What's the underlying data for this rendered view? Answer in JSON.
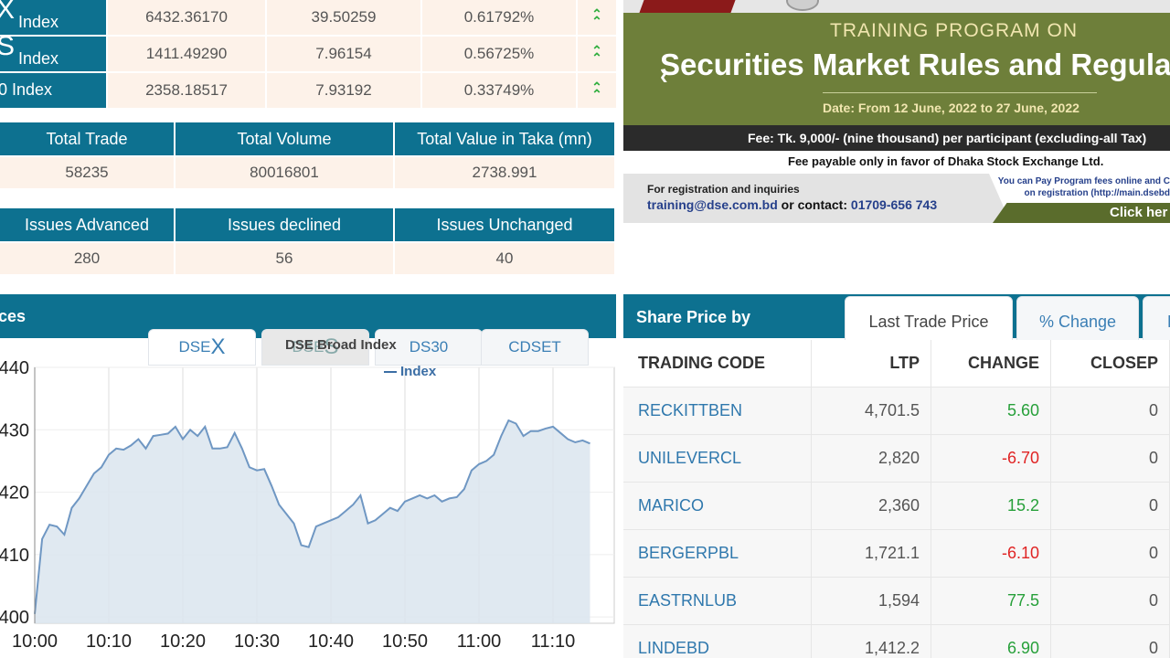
{
  "indices": [
    {
      "name_big": "X",
      "name_small": "Index",
      "value": "6432.36170",
      "change": "39.50259",
      "percent": "0.61792%"
    },
    {
      "name_big": "S",
      "name_small": "Index",
      "value": "1411.49290",
      "change": "7.96154",
      "percent": "0.56725%"
    },
    {
      "name_plain": "0 Index",
      "value": "2358.18517",
      "change": "7.93192",
      "percent": "0.33749%"
    }
  ],
  "trade_stats": {
    "headers": [
      "Total Trade",
      "Total Volume",
      "Total Value in Taka (mn)"
    ],
    "values": [
      "58235",
      "80016801",
      "2738.991"
    ]
  },
  "issue_stats": {
    "headers": [
      "Issues Advanced",
      "Issues declined",
      "Issues Unchanged"
    ],
    "values": [
      "280",
      "56",
      "40"
    ]
  },
  "chart_panel": {
    "title": "ces",
    "tabs": [
      "DSEX",
      "DSES",
      "DS30",
      "CDSET"
    ],
    "tab_small": [
      "DSE",
      "DSE",
      "",
      ""
    ],
    "tab_big": [
      "X",
      "S",
      "",
      ""
    ],
    "tooltip": "DSE Broad Index",
    "legend": "Index"
  },
  "chart_data": {
    "type": "area",
    "xlabel": "",
    "ylabel": "",
    "x_ticks": [
      "10:00",
      "10:10",
      "10:20",
      "10:30",
      "10:40",
      "10:50",
      "11:00",
      "11:10"
    ],
    "y_ticks": [
      "440",
      "430",
      "420",
      "410",
      "400"
    ],
    "ylim": [
      399,
      440
    ],
    "series": [
      {
        "name": "Index",
        "x_minutes": [
          0,
          1,
          2,
          3,
          4,
          5,
          6,
          7,
          8,
          9,
          10,
          11,
          12,
          13,
          14,
          15,
          16,
          17,
          18,
          19,
          20,
          21,
          22,
          23,
          24,
          25,
          26,
          27,
          28,
          29,
          30,
          31,
          32,
          33,
          34,
          35,
          36,
          37,
          38,
          39,
          40,
          41,
          42,
          43,
          44,
          45,
          46,
          47,
          48,
          49,
          50,
          51,
          52,
          53,
          54,
          55,
          56,
          57,
          58,
          59,
          60,
          61,
          62,
          63,
          64,
          65,
          66,
          67,
          68,
          69,
          70,
          71,
          72,
          73,
          74,
          75
        ],
        "values": [
          400.5,
          412.5,
          414.8,
          414.5,
          413.2,
          417.5,
          419.0,
          421.0,
          423.0,
          424.0,
          426.0,
          427.0,
          426.8,
          427.5,
          428.5,
          427.0,
          429.0,
          429.2,
          429.4,
          430.5,
          428.5,
          430.0,
          429.0,
          430.5,
          427.0,
          427.0,
          427.2,
          429.5,
          427.0,
          424.0,
          423.5,
          423.7,
          421.0,
          418.0,
          416.5,
          415.0,
          411.5,
          411.2,
          414.5,
          415.0,
          415.5,
          416.0,
          417.0,
          418.0,
          419.5,
          415.0,
          415.5,
          416.5,
          417.5,
          417.0,
          418.5,
          419.0,
          419.5,
          419.0,
          419.5,
          418.5,
          419.0,
          419.2,
          420.5,
          423.5,
          424.5,
          425.0,
          426.0,
          429.0,
          431.5,
          431.0,
          429.0,
          429.8,
          429.8,
          430.2,
          430.5,
          429.5,
          428.5,
          428.0,
          428.3,
          427.8
        ]
      }
    ],
    "colors": {
      "line": "#6f97c3",
      "fill": "#dbe5ef"
    },
    "grid": true
  },
  "banner": {
    "program": "TRAINING PROGRAM ON",
    "title": "Securities Market Rules and Regula",
    "date": "Date: From 12 June, 2022 to 27 June, 2022",
    "fee": "Fee: Tk. 9,000/- (nine thousand) per participant (excluding-all Tax)",
    "fee_payable": "Fee payable only in favor of Dhaka Stock Exchange Ltd.",
    "reg_label": "For registration and inquiries",
    "reg_email": "training@dse.com.bd",
    "reg_or": "or",
    "reg_contact_label": "contact:",
    "reg_phone": "01709-656 743",
    "pay_line1": "You can Pay Program fees online and C",
    "pay_line2": "on registration (http://main.dsebd",
    "click": "Click her",
    "prev_icon": "chevron-left"
  },
  "share_price": {
    "title": "Share Price by",
    "tabs": [
      "Last Trade Price",
      "% Change",
      "D"
    ],
    "columns": [
      "TRADING CODE",
      "LTP",
      "CHANGE",
      "CLOSEP"
    ],
    "rows": [
      {
        "code": "RECKITTBEN",
        "ltp": "4,701.5",
        "change": "5.60",
        "closep": "0",
        "dir": "pos"
      },
      {
        "code": "UNILEVERCL",
        "ltp": "2,820",
        "change": "-6.70",
        "closep": "0",
        "dir": "neg"
      },
      {
        "code": "MARICO",
        "ltp": "2,360",
        "change": "15.2",
        "closep": "0",
        "dir": "pos"
      },
      {
        "code": "BERGERPBL",
        "ltp": "1,721.1",
        "change": "-6.10",
        "closep": "0",
        "dir": "neg"
      },
      {
        "code": "EASTRNLUB",
        "ltp": "1,594",
        "change": "77.5",
        "closep": "0",
        "dir": "pos"
      },
      {
        "code": "LINDEBD",
        "ltp": "1,412.2",
        "change": "6.90",
        "closep": "0",
        "dir": "pos"
      }
    ]
  }
}
